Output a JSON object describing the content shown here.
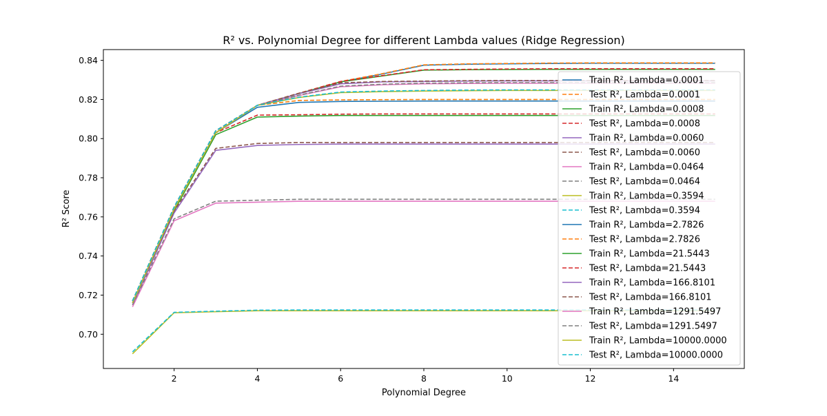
{
  "chart_data": {
    "type": "line",
    "title": "R² vs. Polynomial Degree for different Lambda values (Ridge Regression)",
    "xlabel": "Polynomial Degree",
    "ylabel": "R² Score",
    "xlim": [
      0.3,
      15.7
    ],
    "ylim": [
      0.6825,
      0.8455
    ],
    "xticks": [
      2,
      4,
      6,
      8,
      10,
      12,
      14
    ],
    "yticks": [
      0.7,
      0.72,
      0.74,
      0.76,
      0.78,
      0.8,
      0.82,
      0.84
    ],
    "grid": false,
    "legend_position": "right",
    "x": [
      1,
      2,
      3,
      4,
      5,
      6,
      7,
      8,
      9,
      10,
      11,
      12,
      13,
      14,
      15
    ],
    "series": [
      {
        "name": "Train R², Lambda=0.0001",
        "style": "solid",
        "color": "#1f77b4",
        "values": [
          0.716,
          0.764,
          0.803,
          0.816,
          0.8185,
          0.819,
          0.8191,
          0.8192,
          0.8192,
          0.8192,
          0.8192,
          0.8192,
          0.8192,
          0.8192,
          0.8192
        ]
      },
      {
        "name": "Test R², Lambda=0.0001",
        "style": "dashed",
        "color": "#ff7f0e",
        "values": [
          0.717,
          0.765,
          0.804,
          0.817,
          0.8195,
          0.8198,
          0.8199,
          0.82,
          0.82,
          0.82,
          0.82,
          0.82,
          0.82,
          0.82,
          0.82
        ]
      },
      {
        "name": "Train R², Lambda=0.0008",
        "style": "solid",
        "color": "#2ca02c",
        "values": [
          0.716,
          0.763,
          0.802,
          0.811,
          0.8115,
          0.8118,
          0.8118,
          0.8118,
          0.8118,
          0.8118,
          0.8118,
          0.8118,
          0.8118,
          0.8118,
          0.8118
        ]
      },
      {
        "name": "Test R², Lambda=0.0008",
        "style": "dashed",
        "color": "#d62728",
        "values": [
          0.717,
          0.764,
          0.803,
          0.812,
          0.8122,
          0.8125,
          0.8126,
          0.8126,
          0.8126,
          0.8126,
          0.8126,
          0.8126,
          0.8126,
          0.8126,
          0.8126
        ]
      },
      {
        "name": "Train R², Lambda=0.0060",
        "style": "solid",
        "color": "#9467bd",
        "values": [
          0.715,
          0.762,
          0.794,
          0.7965,
          0.797,
          0.7972,
          0.7972,
          0.7972,
          0.7972,
          0.7972,
          0.7972,
          0.7972,
          0.7972,
          0.7972,
          0.7972
        ]
      },
      {
        "name": "Test R², Lambda=0.0060",
        "style": "dashed",
        "color": "#8c564b",
        "values": [
          0.716,
          0.763,
          0.795,
          0.7975,
          0.798,
          0.798,
          0.798,
          0.798,
          0.798,
          0.798,
          0.798,
          0.798,
          0.798,
          0.798,
          0.798
        ]
      },
      {
        "name": "Train R², Lambda=0.0464",
        "style": "solid",
        "color": "#e377c2",
        "values": [
          0.714,
          0.758,
          0.767,
          0.7675,
          0.768,
          0.768,
          0.768,
          0.768,
          0.768,
          0.768,
          0.768,
          0.768,
          0.768,
          0.768,
          0.768
        ]
      },
      {
        "name": "Test R², Lambda=0.0464",
        "style": "dashed",
        "color": "#7f7f7f",
        "values": [
          0.715,
          0.759,
          0.768,
          0.7685,
          0.769,
          0.769,
          0.769,
          0.769,
          0.769,
          0.769,
          0.769,
          0.769,
          0.769,
          0.769,
          0.769
        ]
      },
      {
        "name": "Train R², Lambda=0.3594",
        "style": "solid",
        "color": "#bcbd22",
        "values": [
          0.69,
          0.711,
          0.7115,
          0.712,
          0.712,
          0.712,
          0.712,
          0.712,
          0.712,
          0.712,
          0.712,
          0.712,
          0.712,
          0.712,
          0.712
        ]
      },
      {
        "name": "Test R², Lambda=0.3594",
        "style": "dashed",
        "color": "#17becf",
        "values": [
          0.691,
          0.7112,
          0.7118,
          0.7123,
          0.7124,
          0.7124,
          0.7124,
          0.7124,
          0.7124,
          0.7124,
          0.7124,
          0.7124,
          0.7124,
          0.7124,
          0.7124
        ]
      },
      {
        "name": "Train R², Lambda=2.7826",
        "style": "solid",
        "color": "#1f77b4",
        "values": [
          0.716,
          0.764,
          0.803,
          0.817,
          0.823,
          0.829,
          0.833,
          0.8375,
          0.838,
          0.8382,
          0.8384,
          0.8385,
          0.8385,
          0.8385,
          0.8385
        ]
      },
      {
        "name": "Test R², Lambda=2.7826",
        "style": "dashed",
        "color": "#ff7f0e",
        "values": [
          0.717,
          0.765,
          0.804,
          0.817,
          0.8232,
          0.8292,
          0.8332,
          0.8377,
          0.8382,
          0.8384,
          0.8386,
          0.8387,
          0.8387,
          0.8387,
          0.8387
        ]
      },
      {
        "name": "Train R², Lambda=21.5443",
        "style": "solid",
        "color": "#2ca02c",
        "values": [
          0.716,
          0.764,
          0.803,
          0.817,
          0.823,
          0.829,
          0.832,
          0.835,
          0.8352,
          0.8353,
          0.8354,
          0.8354,
          0.8354,
          0.8354,
          0.8354
        ]
      },
      {
        "name": "Test R², Lambda=21.5443",
        "style": "dashed",
        "color": "#d62728",
        "values": [
          0.717,
          0.765,
          0.804,
          0.817,
          0.8232,
          0.8292,
          0.8322,
          0.8352,
          0.8354,
          0.8356,
          0.8357,
          0.8357,
          0.8357,
          0.8357,
          0.8357
        ]
      },
      {
        "name": "Train R², Lambda=166.8101",
        "style": "solid",
        "color": "#9467bd",
        "values": [
          0.716,
          0.764,
          0.803,
          0.817,
          0.823,
          0.828,
          0.829,
          0.8292,
          0.8294,
          0.8295,
          0.8295,
          0.8295,
          0.8295,
          0.8295,
          0.8295
        ]
      },
      {
        "name": "Test R², Lambda=166.8101",
        "style": "dashed",
        "color": "#8c564b",
        "values": [
          0.717,
          0.765,
          0.804,
          0.817,
          0.8232,
          0.8285,
          0.8292,
          0.8294,
          0.8296,
          0.8297,
          0.8297,
          0.8297,
          0.8297,
          0.8297,
          0.8297
        ]
      },
      {
        "name": "Train R², Lambda=1291.5497",
        "style": "solid",
        "color": "#e377c2",
        "values": [
          0.716,
          0.764,
          0.803,
          0.817,
          0.822,
          0.8265,
          0.8275,
          0.828,
          0.8282,
          0.8283,
          0.8283,
          0.8283,
          0.8283,
          0.8283,
          0.8283
        ]
      },
      {
        "name": "Test R², Lambda=1291.5497",
        "style": "dashed",
        "color": "#7f7f7f",
        "values": [
          0.717,
          0.765,
          0.804,
          0.817,
          0.8222,
          0.8268,
          0.8278,
          0.8283,
          0.8285,
          0.8286,
          0.8286,
          0.8286,
          0.8286,
          0.8286,
          0.8286
        ]
      },
      {
        "name": "Train R², Lambda=10000.0000",
        "style": "solid",
        "color": "#bcbd22",
        "values": [
          0.716,
          0.764,
          0.803,
          0.817,
          0.821,
          0.8235,
          0.824,
          0.8243,
          0.8245,
          0.8246,
          0.8246,
          0.8246,
          0.8246,
          0.8246,
          0.8246
        ]
      },
      {
        "name": "Test R², Lambda=10000.0000",
        "style": "dashed",
        "color": "#17becf",
        "values": [
          0.717,
          0.765,
          0.804,
          0.817,
          0.8212,
          0.8238,
          0.8243,
          0.8246,
          0.8248,
          0.8249,
          0.8249,
          0.8249,
          0.8249,
          0.8249,
          0.8249
        ]
      }
    ]
  }
}
